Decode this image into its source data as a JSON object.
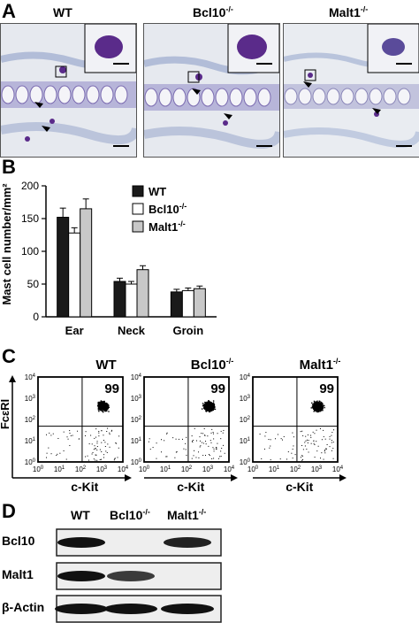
{
  "panels": {
    "a": {
      "letter": "A",
      "genotypes": [
        {
          "base": "WT",
          "sup": ""
        },
        {
          "base": "Bcl10",
          "sup": "-/-"
        },
        {
          "base": "Malt1",
          "sup": "-/-"
        }
      ]
    },
    "b": {
      "letter": "B"
    },
    "c": {
      "letter": "C",
      "plots": [
        {
          "base": "WT",
          "sup": "",
          "percent": "99"
        },
        {
          "base": "Bcl10",
          "sup": "-/-",
          "percent": "99"
        },
        {
          "base": "Malt1",
          "sup": "-/-",
          "percent": "99"
        }
      ],
      "x_label": "c-Kit",
      "y_label": "FcεRI",
      "tick_labels": [
        "10",
        "10",
        "10",
        "10",
        "10"
      ],
      "tick_exps": [
        "0",
        "1",
        "2",
        "3",
        "4"
      ]
    },
    "d": {
      "letter": "D",
      "lanes": [
        {
          "base": "WT",
          "sup": ""
        },
        {
          "base": "Bcl10",
          "sup": "-/-"
        },
        {
          "base": "Malt1",
          "sup": "-/-"
        }
      ],
      "rows": [
        "Bcl10",
        "Malt1",
        "β-Actin"
      ],
      "band_intensity": [
        [
          1,
          0,
          0.9
        ],
        [
          1,
          0.75,
          0
        ],
        [
          1,
          1,
          1
        ]
      ]
    }
  },
  "chart_data": {
    "type": "bar",
    "categories": [
      "Ear",
      "Neck",
      "Groin"
    ],
    "series": [
      {
        "name": "WT",
        "values": [
          152,
          54,
          38
        ],
        "errors": [
          14,
          5,
          4
        ],
        "color": "#1a1a1a"
      },
      {
        "name": "Bcl10-/-",
        "values": [
          128,
          50,
          40
        ],
        "errors": [
          8,
          4,
          4
        ],
        "color": "#ffffff"
      },
      {
        "name": "Malt1-/-",
        "values": [
          165,
          72,
          43
        ],
        "errors": [
          15,
          6,
          4
        ],
        "color": "#c8c8c8"
      }
    ],
    "ylabel": "Mast cell number/mm²",
    "ylim": [
      0,
      200
    ],
    "yticks": [
      0,
      50,
      100,
      150,
      200
    ],
    "legend": [
      {
        "base": "WT",
        "sup": ""
      },
      {
        "base": "Bcl10",
        "sup": "-/-"
      },
      {
        "base": "Malt1",
        "sup": "-/-"
      }
    ]
  },
  "colors": {
    "tissue_bg": "#dfe3ea",
    "stain_purple": "#5a2b8a",
    "stain_blue": "#8fa0c8"
  }
}
